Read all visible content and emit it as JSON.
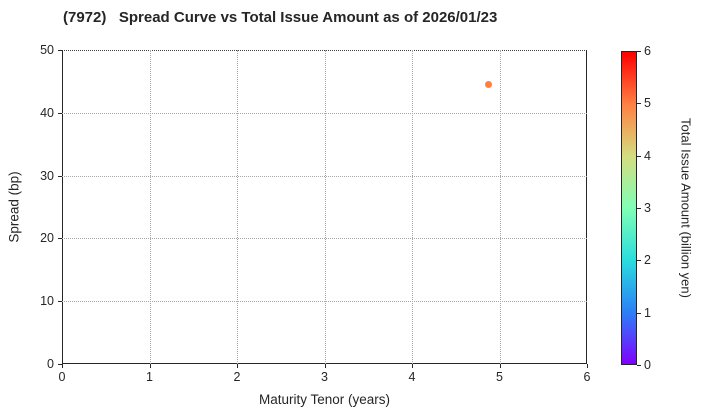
{
  "chart_data": {
    "type": "scatter",
    "title": "(7972)   Spread Curve vs Total Issue Amount as of 2026/01/23",
    "xlabel": "Maturity Tenor (years)",
    "ylabel": "Spread (bp)",
    "xlim": [
      0,
      6
    ],
    "ylim": [
      0,
      50
    ],
    "xticks": [
      0,
      1,
      2,
      3,
      4,
      5,
      6
    ],
    "yticks": [
      0,
      10,
      20,
      30,
      40,
      50
    ],
    "grid": true,
    "points": [
      {
        "x": 4.87,
        "y": 44.5,
        "amount_billion_yen": 5.0,
        "color": "#ff8042"
      }
    ],
    "colorbar": {
      "label": "Total Issue Amount (billion yen)",
      "min": 0,
      "max": 6,
      "ticks": [
        0,
        1,
        2,
        3,
        4,
        5,
        6
      ],
      "colormap": "rainbow",
      "stops": [
        {
          "value": 0,
          "color": "#8000ff"
        },
        {
          "value": 1,
          "color": "#2b80f6"
        },
        {
          "value": 2,
          "color": "#2bdddd"
        },
        {
          "value": 3,
          "color": "#80ffb5"
        },
        {
          "value": 4,
          "color": "#d4dd80"
        },
        {
          "value": 5,
          "color": "#ff8042"
        },
        {
          "value": 6,
          "color": "#ff0000"
        }
      ]
    },
    "colors": {
      "text": "#262626",
      "grid": "#a8a8a8",
      "spine": "#262626"
    }
  }
}
